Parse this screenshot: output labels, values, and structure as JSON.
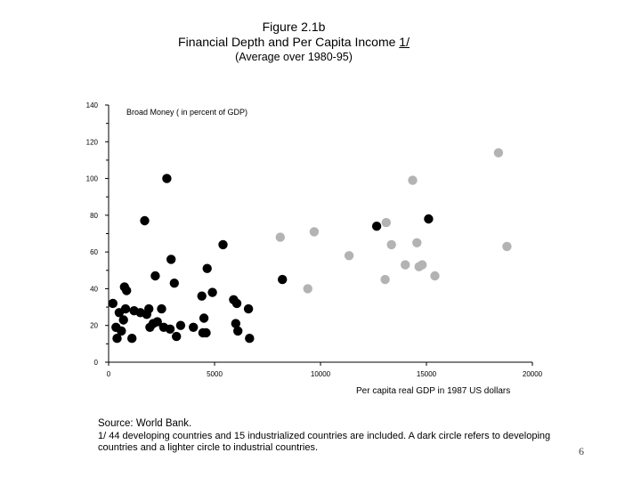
{
  "figure": {
    "title": "Figure 2.1b",
    "subtitle_main": "Financial Depth and Per Capita Income ",
    "subtitle_footnote_ref": "1/",
    "subtitle_period": "(Average over 1980-95)"
  },
  "source": {
    "line": "Source: World Bank.",
    "note": "1/ 44 developing countries and 15 industrialized countries are included. A dark circle refers to developing countries and a lighter circle to industrial countries."
  },
  "page_number": "6",
  "chart_data": {
    "type": "scatter",
    "ylabel": "Broad Money ( in percent of GDP)",
    "xlabel": "Per capita real GDP in 1987 US dollars",
    "xlim": [
      0,
      20000
    ],
    "ylim": [
      0,
      140
    ],
    "x_ticks": [
      0,
      5000,
      10000,
      15000,
      20000
    ],
    "y_ticks": [
      0,
      20,
      40,
      60,
      80,
      100,
      120,
      140
    ],
    "grid": false,
    "colors": {
      "developing": "#000000",
      "industrial": "#b3b3b3"
    },
    "series": [
      {
        "key": "developing",
        "color": "#000000",
        "points": [
          [
            200,
            32
          ],
          [
            350,
            19
          ],
          [
            400,
            13
          ],
          [
            500,
            27
          ],
          [
            600,
            17
          ],
          [
            700,
            23
          ],
          [
            750,
            41
          ],
          [
            800,
            29
          ],
          [
            850,
            39
          ],
          [
            1100,
            13
          ],
          [
            1200,
            28
          ],
          [
            1500,
            27
          ],
          [
            1700,
            77
          ],
          [
            1800,
            26
          ],
          [
            1900,
            29
          ],
          [
            1950,
            19
          ],
          [
            2100,
            21
          ],
          [
            2200,
            47
          ],
          [
            2300,
            22
          ],
          [
            2500,
            29
          ],
          [
            2600,
            19
          ],
          [
            2750,
            100
          ],
          [
            2900,
            18
          ],
          [
            2950,
            56
          ],
          [
            3100,
            43
          ],
          [
            3200,
            14
          ],
          [
            3400,
            20
          ],
          [
            4000,
            19
          ],
          [
            4400,
            36
          ],
          [
            4450,
            16
          ],
          [
            4500,
            24
          ],
          [
            4600,
            16
          ],
          [
            4650,
            51
          ],
          [
            4900,
            38
          ],
          [
            5400,
            64
          ],
          [
            5900,
            34
          ],
          [
            6000,
            21
          ],
          [
            6050,
            32
          ],
          [
            6100,
            17
          ],
          [
            6600,
            29
          ],
          [
            6650,
            13
          ],
          [
            8200,
            45
          ],
          [
            12650,
            74
          ],
          [
            15100,
            78
          ]
        ]
      },
      {
        "key": "industrial",
        "color": "#b3b3b3",
        "points": [
          [
            8100,
            68
          ],
          [
            9400,
            40
          ],
          [
            9700,
            71
          ],
          [
            11350,
            58
          ],
          [
            13050,
            45
          ],
          [
            13100,
            76
          ],
          [
            13350,
            64
          ],
          [
            14000,
            53
          ],
          [
            14350,
            99
          ],
          [
            14550,
            65
          ],
          [
            14650,
            52
          ],
          [
            14800,
            53
          ],
          [
            15400,
            47
          ],
          [
            18400,
            114
          ],
          [
            18800,
            63
          ]
        ]
      }
    ]
  }
}
